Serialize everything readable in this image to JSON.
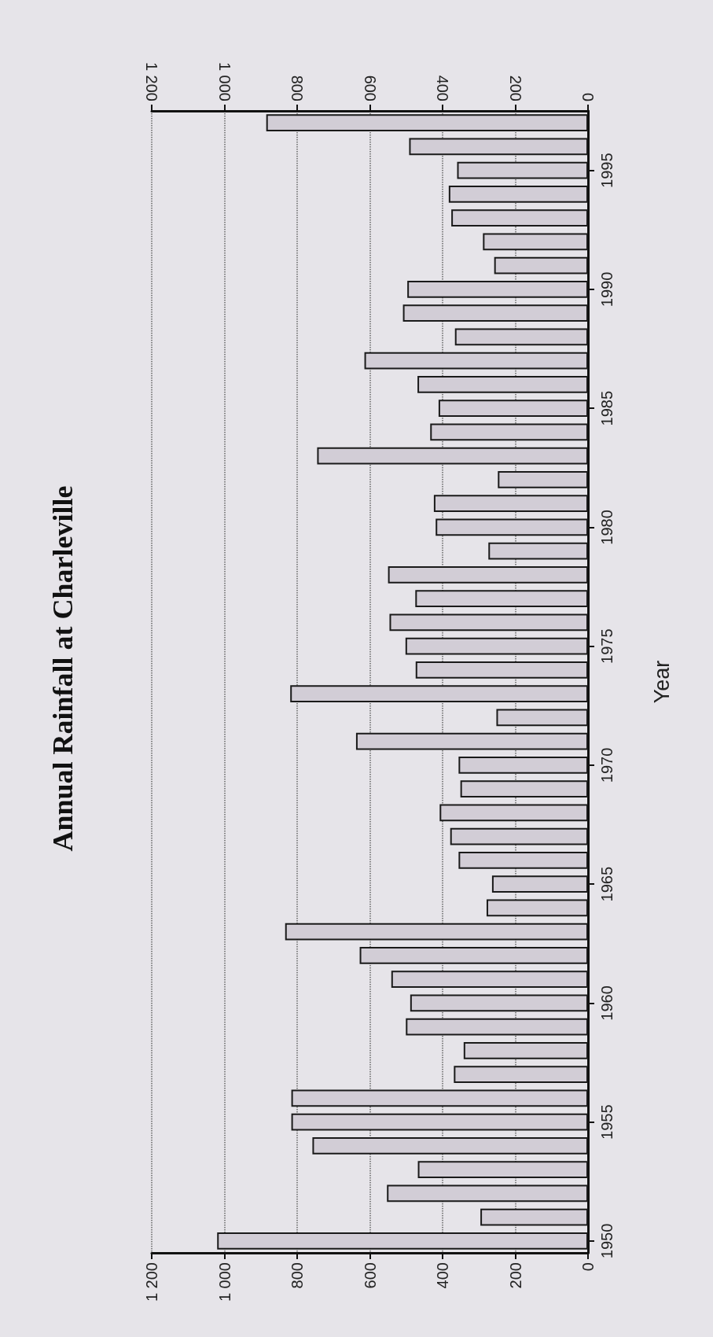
{
  "chart_data": {
    "type": "bar",
    "orientation": "horizontal",
    "title": "Annual Rainfall at Charleville",
    "ylabel": "Year",
    "categories": [
      null,
      null,
      "1995",
      null,
      null,
      null,
      null,
      "1990",
      null,
      null,
      null,
      null,
      "1985",
      null,
      null,
      null,
      null,
      "1980",
      null,
      null,
      null,
      null,
      "1975",
      null,
      null,
      null,
      null,
      "1970",
      null,
      null,
      null,
      null,
      "1965",
      null,
      null,
      null,
      null,
      "1960",
      null,
      null,
      null,
      null,
      "1955",
      null,
      null,
      null,
      null,
      "1950"
    ],
    "values": [
      885,
      492,
      360,
      383,
      376,
      289,
      258,
      497,
      509,
      366,
      615,
      469,
      411,
      434,
      745,
      248,
      424,
      419,
      274,
      550,
      475,
      546,
      502,
      474,
      819,
      252,
      638,
      356,
      351,
      408,
      379,
      356,
      264,
      279,
      833,
      628,
      541,
      489,
      501,
      342,
      369,
      816,
      816,
      758,
      468,
      553,
      296,
      1020
    ],
    "color": "#d2cdd6",
    "xlim": [
      1200,
      0
    ],
    "xticks": [
      0,
      200,
      400,
      600,
      800,
      {
        "value": 1000,
        "label": "1 000"
      },
      {
        "value": 1200,
        "label": "1 200"
      }
    ],
    "x2lim": [
      1200,
      0
    ],
    "x2ticks": [
      0,
      200,
      400,
      600,
      800,
      {
        "value": 1000,
        "label": "1 000"
      },
      {
        "value": 1200,
        "label": "1 200"
      }
    ],
    "grid": "x"
  }
}
